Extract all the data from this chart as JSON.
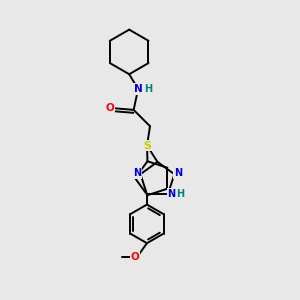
{
  "bg_color": "#e8e8e8",
  "atom_colors": {
    "C": "#000000",
    "N": "#0000cc",
    "O": "#ff0000",
    "S": "#cccc00",
    "H": "#008080"
  },
  "bond_color": "#000000",
  "figsize": [
    3.0,
    3.0
  ],
  "dpi": 100
}
